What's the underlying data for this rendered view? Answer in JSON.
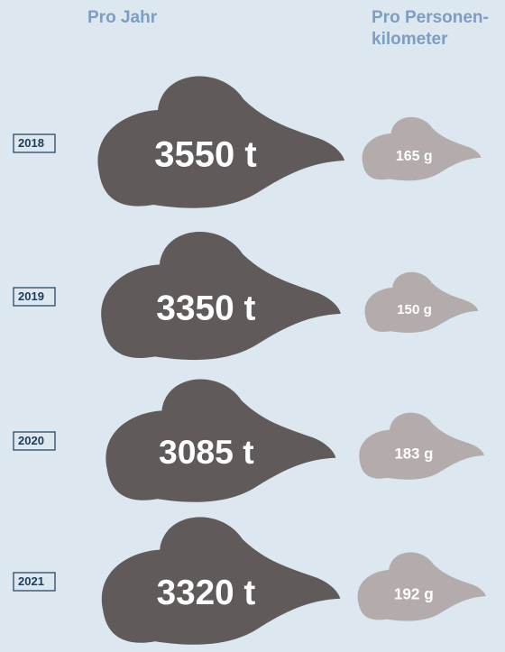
{
  "chart_data": {
    "type": "cloud",
    "categories": [
      "2018",
      "2019",
      "2020",
      "2021"
    ],
    "series": [
      {
        "name": "Pro Jahr",
        "color": "#615a5a",
        "values": [
          3550,
          3350,
          3085,
          3320
        ],
        "value_labels": [
          "3550 t",
          "3350 t",
          "3085 t",
          "3320 t"
        ]
      },
      {
        "name": "Pro Personen-kilometer",
        "color": "#b4acac",
        "values": [
          165,
          150,
          183,
          192
        ],
        "value_labels": [
          "165 g",
          "150 g",
          "183 g",
          "192 g"
        ]
      }
    ]
  }
}
